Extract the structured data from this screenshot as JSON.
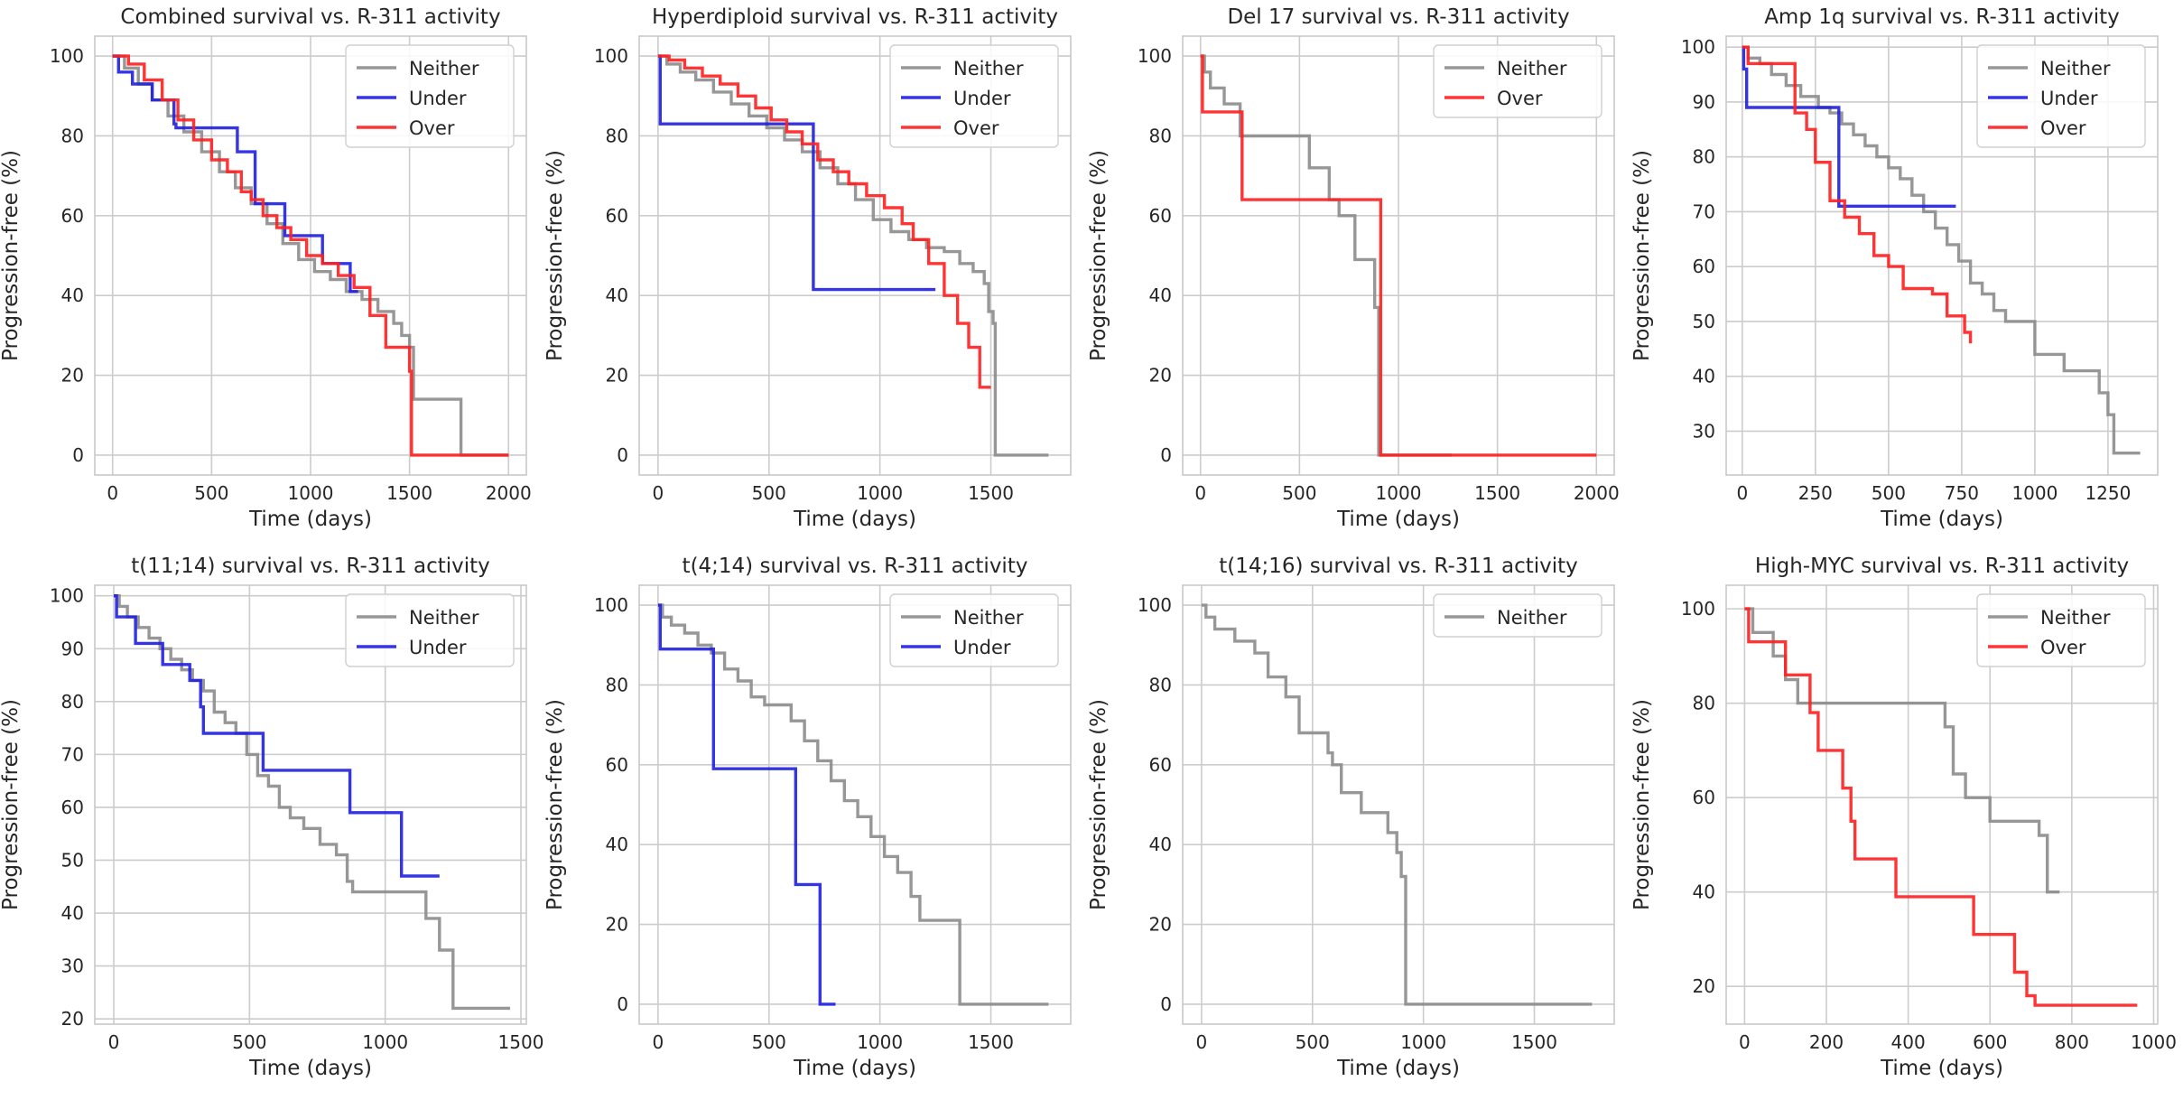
{
  "chart_data": [
    {
      "type": "line",
      "title": "Combined survival vs. R-311 activity",
      "xlabel": "Time (days)",
      "ylabel": "Progression-free (%)",
      "xlim": [
        -90,
        2090
      ],
      "ylim": [
        -5,
        105
      ],
      "xticks": [
        0,
        500,
        1000,
        1500,
        2000
      ],
      "yticks": [
        0,
        20,
        40,
        60,
        80,
        100
      ],
      "legend": "top-right",
      "series": [
        {
          "name": "Neither",
          "color": "#8c8c8c",
          "x": [
            0,
            60,
            130,
            200,
            280,
            360,
            450,
            540,
            620,
            700,
            780,
            860,
            940,
            1020,
            1100,
            1180,
            1260,
            1340,
            1420,
            1460,
            1500,
            1520,
            1760,
            2000
          ],
          "y": [
            100,
            97,
            93,
            89,
            85,
            81,
            76,
            71,
            67,
            63,
            58,
            53,
            49,
            46,
            44,
            41,
            39,
            36,
            33,
            30,
            27,
            14,
            0,
            0
          ]
        },
        {
          "name": "Under",
          "color": "#1f1fe0",
          "x": [
            0,
            30,
            100,
            200,
            310,
            320,
            540,
            630,
            720,
            870,
            1060,
            1200,
            1240
          ],
          "y": [
            100,
            96,
            93,
            89,
            83,
            82,
            82,
            76,
            63,
            55,
            48,
            41,
            41
          ]
        },
        {
          "name": "Over",
          "color": "#ff1f1f",
          "x": [
            0,
            80,
            160,
            250,
            330,
            410,
            500,
            580,
            650,
            700,
            760,
            830,
            900,
            980,
            1060,
            1140,
            1220,
            1300,
            1380,
            1500,
            1510,
            2000
          ],
          "y": [
            100,
            98,
            94,
            89,
            84,
            79,
            74,
            71,
            66,
            64,
            60,
            57,
            54,
            50,
            48,
            45,
            42,
            35,
            27,
            21,
            0,
            0
          ]
        }
      ]
    },
    {
      "type": "line",
      "title": "Hyperdiploid survival vs. R-311 activity",
      "xlabel": "Time (days)",
      "ylabel": "Progression-free (%)",
      "xlim": [
        -85,
        1860
      ],
      "ylim": [
        -5,
        105
      ],
      "xticks": [
        0,
        500,
        1000,
        1500
      ],
      "yticks": [
        0,
        20,
        40,
        60,
        80,
        100
      ],
      "legend": "top-right",
      "series": [
        {
          "name": "Neither",
          "color": "#8c8c8c",
          "x": [
            0,
            40,
            100,
            170,
            250,
            330,
            410,
            490,
            570,
            650,
            730,
            810,
            890,
            970,
            1050,
            1130,
            1210,
            1290,
            1360,
            1420,
            1470,
            1490,
            1510,
            1520,
            1760
          ],
          "y": [
            100,
            98,
            96,
            94,
            91,
            88,
            85,
            82,
            79,
            76,
            72,
            68,
            64,
            59,
            56,
            54,
            52,
            51,
            48,
            46,
            43,
            36,
            33,
            0,
            0
          ]
        },
        {
          "name": "Under",
          "color": "#1f1fe0",
          "x": [
            0,
            10,
            690,
            700,
            1250
          ],
          "y": [
            100,
            83,
            83,
            41.5,
            41.5
          ]
        },
        {
          "name": "Over",
          "color": "#ff1f1f",
          "x": [
            0,
            50,
            120,
            200,
            280,
            360,
            440,
            510,
            580,
            650,
            720,
            790,
            860,
            940,
            1020,
            1100,
            1150,
            1220,
            1290,
            1350,
            1400,
            1450,
            1500
          ],
          "y": [
            100,
            99,
            97,
            95,
            93,
            90,
            87,
            84,
            81,
            78,
            74,
            71,
            68,
            65,
            62,
            58,
            54,
            48,
            40,
            33,
            27,
            17,
            17
          ]
        }
      ]
    },
    {
      "type": "line",
      "title": "Del 17 survival vs. R-311 activity",
      "xlabel": "Time (days)",
      "ylabel": "Progression-free (%)",
      "xlim": [
        -90,
        2090
      ],
      "ylim": [
        -5,
        105
      ],
      "xticks": [
        0,
        500,
        1000,
        1500,
        2000
      ],
      "yticks": [
        0,
        20,
        40,
        60,
        80,
        100
      ],
      "legend": "top-right",
      "series": [
        {
          "name": "Neither",
          "color": "#8c8c8c",
          "x": [
            0,
            20,
            50,
            120,
            200,
            350,
            550,
            650,
            700,
            780,
            880,
            900,
            1000,
            1270
          ],
          "y": [
            100,
            96,
            92,
            88,
            80,
            80,
            72,
            64,
            60,
            49,
            37,
            0,
            0,
            0
          ]
        },
        {
          "name": "Over",
          "color": "#ff1f1f",
          "x": [
            0,
            10,
            190,
            210,
            900,
            910,
            2000
          ],
          "y": [
            100,
            86,
            86,
            64,
            64,
            0,
            0
          ]
        }
      ]
    },
    {
      "type": "line",
      "title": "Amp 1q survival vs. R-311 activity",
      "xlabel": "Time (days)",
      "ylabel": "Progression-free (%)",
      "xlim": [
        -55,
        1420
      ],
      "ylim": [
        22,
        102
      ],
      "xticks": [
        0,
        250,
        500,
        750,
        1000,
        1250
      ],
      "yticks": [
        30,
        40,
        50,
        60,
        70,
        80,
        90,
        100
      ],
      "legend": "top-right",
      "series": [
        {
          "name": "Neither",
          "color": "#8c8c8c",
          "x": [
            0,
            20,
            60,
            100,
            150,
            200,
            260,
            300,
            340,
            380,
            420,
            460,
            500,
            540,
            580,
            620,
            660,
            700,
            740,
            780,
            820,
            860,
            900,
            1000,
            1100,
            1180,
            1220,
            1250,
            1270,
            1360
          ],
          "y": [
            100,
            98,
            97,
            95,
            93,
            91,
            89,
            88,
            86,
            84,
            82,
            80,
            78,
            76,
            73,
            70,
            67,
            64,
            61,
            57,
            55,
            52,
            50,
            44,
            41,
            41,
            37,
            33,
            26,
            26
          ]
        },
        {
          "name": "Under",
          "color": "#1f1fe0",
          "x": [
            0,
            5,
            15,
            320,
            330,
            730
          ],
          "y": [
            100,
            96,
            89,
            89,
            71,
            71
          ]
        },
        {
          "name": "Over",
          "color": "#ff1f1f",
          "x": [
            0,
            20,
            160,
            180,
            220,
            250,
            300,
            350,
            400,
            450,
            500,
            550,
            650,
            700,
            760,
            780
          ],
          "y": [
            100,
            97,
            97,
            88,
            85,
            79,
            72,
            69,
            66,
            62,
            60,
            56,
            55,
            51,
            48,
            46
          ]
        }
      ]
    },
    {
      "type": "line",
      "title": "t(11;14) survival vs. R-311 activity",
      "xlabel": "Time (days)",
      "ylabel": "Progression-free (%)",
      "xlim": [
        -70,
        1520
      ],
      "ylim": [
        19,
        102
      ],
      "xticks": [
        0,
        500,
        1000,
        1500
      ],
      "yticks": [
        20,
        30,
        40,
        50,
        60,
        70,
        80,
        90,
        100
      ],
      "legend": "top-right",
      "series": [
        {
          "name": "Neither",
          "color": "#8c8c8c",
          "x": [
            0,
            20,
            50,
            90,
            130,
            170,
            210,
            250,
            290,
            330,
            370,
            410,
            450,
            490,
            530,
            570,
            610,
            650,
            700,
            760,
            820,
            860,
            880,
            1000,
            1100,
            1150,
            1200,
            1250,
            1460
          ],
          "y": [
            100,
            98,
            96,
            94,
            92,
            90,
            88,
            86,
            84,
            82,
            78,
            76,
            74,
            70,
            66,
            64,
            60,
            58,
            56,
            53,
            51,
            46,
            44,
            44,
            44,
            39,
            33,
            22,
            22
          ]
        },
        {
          "name": "Under",
          "color": "#1f1fe0",
          "x": [
            0,
            10,
            80,
            180,
            280,
            320,
            330,
            550,
            870,
            1060,
            1200
          ],
          "y": [
            100,
            96,
            91,
            87,
            84,
            79,
            74,
            67,
            59,
            47,
            47
          ]
        }
      ]
    },
    {
      "type": "line",
      "title": "t(4;14) survival vs. R-311 activity",
      "xlabel": "Time (days)",
      "ylabel": "Progression-free (%)",
      "xlim": [
        -85,
        1860
      ],
      "ylim": [
        -5,
        105
      ],
      "xticks": [
        0,
        500,
        1000,
        1500
      ],
      "yticks": [
        0,
        20,
        40,
        60,
        80,
        100
      ],
      "legend": "top-right",
      "series": [
        {
          "name": "Neither",
          "color": "#8c8c8c",
          "x": [
            0,
            20,
            60,
            120,
            180,
            240,
            300,
            360,
            420,
            480,
            540,
            600,
            660,
            720,
            780,
            840,
            900,
            960,
            1020,
            1080,
            1140,
            1180,
            1360,
            1760
          ],
          "y": [
            100,
            97,
            95,
            93,
            90,
            88,
            84,
            81,
            77,
            75,
            75,
            71,
            66,
            61,
            56,
            51,
            47,
            42,
            37,
            33,
            27,
            21,
            0,
            0
          ]
        },
        {
          "name": "Under",
          "color": "#1f1fe0",
          "x": [
            0,
            10,
            240,
            250,
            610,
            620,
            720,
            730,
            800
          ],
          "y": [
            100,
            89,
            89,
            59,
            59,
            30,
            30,
            0,
            0
          ]
        }
      ]
    },
    {
      "type": "line",
      "title": "t(14;16) survival vs. R-311 activity",
      "xlabel": "Time (days)",
      "ylabel": "Progression-free (%)",
      "xlim": [
        -85,
        1860
      ],
      "ylim": [
        -5,
        105
      ],
      "xticks": [
        0,
        500,
        1000,
        1500
      ],
      "yticks": [
        0,
        20,
        40,
        60,
        80,
        100
      ],
      "legend": "top-right",
      "series": [
        {
          "name": "Neither",
          "color": "#8c8c8c",
          "x": [
            0,
            20,
            60,
            150,
            240,
            300,
            380,
            440,
            570,
            590,
            630,
            720,
            840,
            880,
            900,
            920,
            1760
          ],
          "y": [
            100,
            97,
            94,
            91,
            88,
            82,
            77,
            68,
            63,
            60,
            53,
            48,
            43,
            38,
            32,
            0,
            0
          ]
        }
      ]
    },
    {
      "type": "line",
      "title": "High-MYC survival vs. R-311 activity",
      "xlabel": "Time (days)",
      "ylabel": "Progression-free (%)",
      "xlim": [
        -45,
        1010
      ],
      "ylim": [
        12,
        105
      ],
      "xticks": [
        0,
        200,
        400,
        600,
        800,
        1000
      ],
      "yticks": [
        20,
        40,
        60,
        80,
        100
      ],
      "legend": "top-right",
      "series": [
        {
          "name": "Neither",
          "color": "#8c8c8c",
          "x": [
            0,
            20,
            70,
            100,
            130,
            490,
            510,
            540,
            600,
            720,
            740,
            770
          ],
          "y": [
            100,
            95,
            90,
            85,
            80,
            75,
            65,
            60,
            55,
            52,
            40,
            40
          ]
        },
        {
          "name": "Over",
          "color": "#ff1f1f",
          "x": [
            0,
            10,
            100,
            160,
            180,
            240,
            260,
            270,
            370,
            560,
            660,
            690,
            710,
            960
          ],
          "y": [
            100,
            93,
            86,
            78,
            70,
            62,
            55,
            47,
            39,
            31,
            23,
            18,
            16,
            16
          ]
        }
      ]
    }
  ]
}
